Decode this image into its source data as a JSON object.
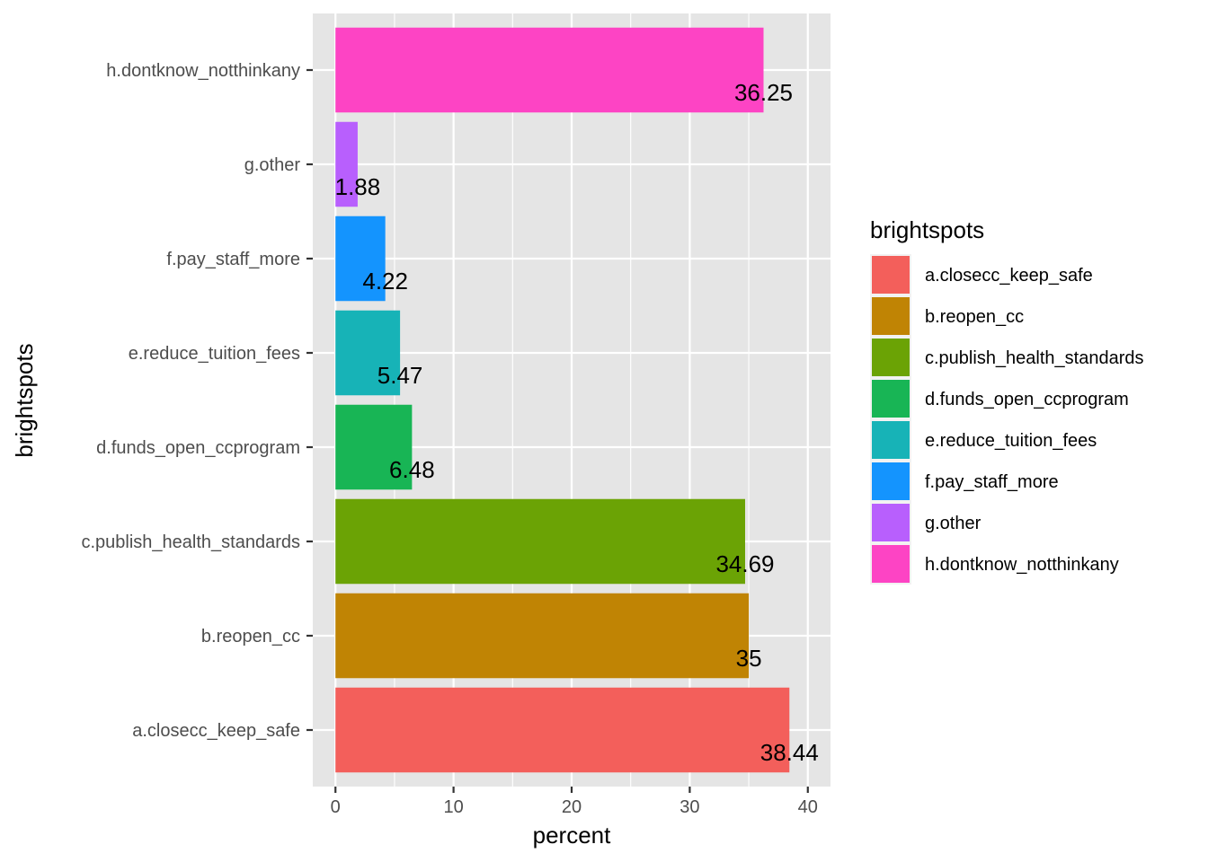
{
  "chart_data": {
    "type": "bar",
    "orientation": "horizontal",
    "title": "",
    "xlabel": "percent",
    "ylabel": "brightspots",
    "xlim": [
      -1.92,
      41.92
    ],
    "xticks": [
      0,
      10,
      20,
      30,
      40
    ],
    "xtick_labels": [
      "0",
      "10",
      "20",
      "30",
      "40"
    ],
    "x_minor_ticks": [
      5,
      15,
      25,
      35
    ],
    "grid": true,
    "categories": [
      "a.closecc_keep_safe",
      "b.reopen_cc",
      "c.publish_health_standards",
      "d.funds_open_ccprogram",
      "e.reduce_tuition_fees",
      "f.pay_staff_more",
      "g.other",
      "h.dontknow_notthinkany"
    ],
    "values": [
      38.44,
      35,
      34.69,
      6.48,
      5.47,
      4.22,
      1.88,
      36.25
    ],
    "data_labels": [
      "38.44",
      "35",
      "34.69",
      "6.48",
      "5.47",
      "4.22",
      "1.88",
      "36.25"
    ],
    "colors": [
      "#F35F5B",
      "#C08404",
      "#6BA305",
      "#18B555",
      "#17B3B7",
      "#1494FE",
      "#B85FFD",
      "#FD44C4"
    ],
    "legend": {
      "title": "brightspots",
      "placement": "right",
      "entries": [
        "a.closecc_keep_safe",
        "b.reopen_cc",
        "c.publish_health_standards",
        "d.funds_open_ccprogram",
        "e.reduce_tuition_fees",
        "f.pay_staff_more",
        "g.other",
        "h.dontknow_notthinkany"
      ]
    },
    "panel_background": "#E5E5E5",
    "grid_color": "#FFFFFF"
  }
}
